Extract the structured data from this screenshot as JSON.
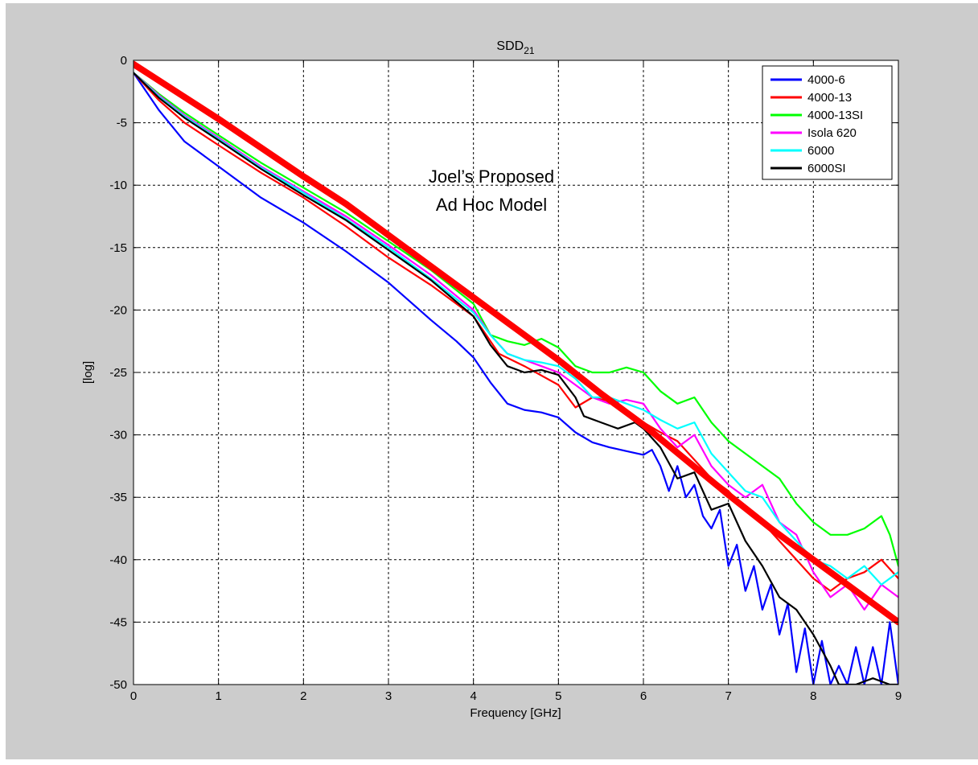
{
  "chart_data": {
    "type": "line",
    "title": {
      "main": "SDD",
      "subscript": "21"
    },
    "xlabel": "Frequency [GHz]",
    "ylabel": "[log]",
    "xlim": [
      0,
      9
    ],
    "ylim": [
      -50,
      0
    ],
    "xticks": [
      0,
      1,
      2,
      3,
      4,
      5,
      6,
      7,
      8,
      9
    ],
    "yticks": [
      0,
      -5,
      -10,
      -15,
      -20,
      -25,
      -30,
      -35,
      -40,
      -45,
      -50
    ],
    "grid": true,
    "legend_position": "top-right",
    "annotation": [
      "Joel’s Proposed",
      "Ad Hoc Model"
    ],
    "series": [
      {
        "name": "4000-6",
        "color": "#0000ff",
        "x": [
          0,
          0.3,
          0.6,
          1.0,
          1.5,
          2.0,
          2.5,
          3.0,
          3.5,
          3.8,
          4.0,
          4.2,
          4.4,
          4.6,
          4.8,
          5.0,
          5.2,
          5.4,
          5.6,
          5.8,
          6.0,
          6.1,
          6.2,
          6.3,
          6.4,
          6.5,
          6.6,
          6.7,
          6.8,
          6.9,
          7.0,
          7.1,
          7.2,
          7.3,
          7.4,
          7.5,
          7.6,
          7.7,
          7.8,
          7.9,
          8.0,
          8.1,
          8.2,
          8.3,
          8.4,
          8.5,
          8.6,
          8.7,
          8.8,
          8.9,
          9.0
        ],
        "y": [
          -1.0,
          -4.0,
          -6.5,
          -8.5,
          -11.0,
          -13.0,
          -15.3,
          -17.8,
          -20.8,
          -22.5,
          -23.8,
          -25.8,
          -27.5,
          -28.0,
          -28.2,
          -28.6,
          -29.8,
          -30.6,
          -31.0,
          -31.3,
          -31.6,
          -31.2,
          -32.5,
          -34.5,
          -32.5,
          -35.0,
          -34.0,
          -36.5,
          -37.5,
          -36.0,
          -40.5,
          -38.8,
          -42.5,
          -40.5,
          -44.0,
          -42.0,
          -46.0,
          -43.5,
          -49.0,
          -45.5,
          -50.0,
          -46.5,
          -50.0,
          -48.5,
          -50.0,
          -47.0,
          -50.0,
          -47.0,
          -50.0,
          -45.0,
          -50.0
        ]
      },
      {
        "name": "4000-13",
        "color": "#ff0000",
        "x": [
          0,
          0.3,
          0.6,
          1.0,
          1.5,
          2.0,
          2.5,
          3.0,
          3.5,
          4.0,
          4.3,
          4.6,
          5.0,
          5.2,
          5.4,
          5.6,
          5.8,
          6.0,
          6.2,
          6.4,
          6.6,
          6.8,
          7.0,
          7.2,
          7.4,
          7.6,
          7.8,
          8.0,
          8.2,
          8.4,
          8.6,
          8.8,
          9.0
        ],
        "y": [
          -1.0,
          -3.2,
          -5.0,
          -6.8,
          -9.0,
          -11.0,
          -13.3,
          -15.8,
          -18.0,
          -20.5,
          -23.5,
          -24.5,
          -26.0,
          -27.8,
          -27.0,
          -27.3,
          -28.0,
          -29.0,
          -29.8,
          -30.5,
          -32.0,
          -33.5,
          -34.5,
          -36.0,
          -37.0,
          -38.5,
          -40.0,
          -41.5,
          -42.5,
          -41.5,
          -41.0,
          -40.0,
          -41.5
        ]
      },
      {
        "name": "4000-13SI",
        "color": "#00ff00",
        "x": [
          0,
          0.3,
          0.6,
          1.0,
          1.5,
          2.0,
          2.5,
          3.0,
          3.5,
          4.0,
          4.2,
          4.4,
          4.6,
          4.8,
          5.0,
          5.2,
          5.4,
          5.6,
          5.8,
          6.0,
          6.2,
          6.4,
          6.6,
          6.8,
          7.0,
          7.2,
          7.4,
          7.6,
          7.8,
          8.0,
          8.2,
          8.4,
          8.6,
          8.8,
          8.9,
          9.0
        ],
        "y": [
          -1.0,
          -2.7,
          -4.2,
          -6.0,
          -8.2,
          -10.2,
          -12.2,
          -14.5,
          -16.8,
          -19.5,
          -22.0,
          -22.5,
          -22.8,
          -22.3,
          -23.0,
          -24.5,
          -25.0,
          -25.0,
          -24.6,
          -25.0,
          -26.5,
          -27.5,
          -27.0,
          -29.0,
          -30.5,
          -31.5,
          -32.5,
          -33.5,
          -35.5,
          -37.0,
          -38.0,
          -38.0,
          -37.5,
          -36.5,
          -38.0,
          -40.5
        ]
      },
      {
        "name": "Isola 620",
        "color": "#ff00ff",
        "x": [
          0,
          0.3,
          0.6,
          1.0,
          1.5,
          2.0,
          2.5,
          3.0,
          3.5,
          4.0,
          4.2,
          4.4,
          4.6,
          4.8,
          5.0,
          5.2,
          5.4,
          5.6,
          5.8,
          6.0,
          6.2,
          6.4,
          6.6,
          6.8,
          7.0,
          7.2,
          7.4,
          7.6,
          7.8,
          8.0,
          8.2,
          8.4,
          8.6,
          8.8,
          9.0
        ],
        "y": [
          -1.0,
          -2.8,
          -4.4,
          -6.2,
          -8.5,
          -10.5,
          -12.5,
          -14.8,
          -17.2,
          -20.0,
          -22.0,
          -23.5,
          -24.0,
          -24.5,
          -25.0,
          -26.0,
          -27.0,
          -27.5,
          -27.2,
          -27.5,
          -29.5,
          -31.0,
          -30.0,
          -32.5,
          -34.0,
          -35.0,
          -34.0,
          -37.0,
          -38.0,
          -41.0,
          -43.0,
          -42.0,
          -44.0,
          -42.0,
          -43.0
        ]
      },
      {
        "name": "6000",
        "color": "#00ffff",
        "x": [
          0,
          0.3,
          0.6,
          1.0,
          1.5,
          2.0,
          2.5,
          3.0,
          3.5,
          4.0,
          4.2,
          4.4,
          4.6,
          4.8,
          5.0,
          5.2,
          5.4,
          5.6,
          5.8,
          6.0,
          6.2,
          6.4,
          6.6,
          6.8,
          7.0,
          7.2,
          7.4,
          7.6,
          7.8,
          8.0,
          8.2,
          8.4,
          8.6,
          8.8,
          9.0
        ],
        "y": [
          -1.0,
          -2.9,
          -4.5,
          -6.3,
          -8.6,
          -10.6,
          -12.7,
          -15.0,
          -17.5,
          -20.2,
          -22.0,
          -23.5,
          -24.0,
          -24.2,
          -24.5,
          -25.5,
          -27.0,
          -27.0,
          -27.5,
          -28.0,
          -28.8,
          -29.5,
          -29.0,
          -31.5,
          -33.0,
          -34.5,
          -35.0,
          -37.0,
          -38.5,
          -40.0,
          -40.5,
          -41.5,
          -40.5,
          -42.0,
          -41.0
        ]
      },
      {
        "name": "6000SI",
        "color": "#000000",
        "x": [
          0,
          0.3,
          0.6,
          1.0,
          1.5,
          2.0,
          2.5,
          3.0,
          3.5,
          4.0,
          4.2,
          4.4,
          4.6,
          4.8,
          5.0,
          5.2,
          5.3,
          5.5,
          5.7,
          5.9,
          6.0,
          6.2,
          6.4,
          6.6,
          6.8,
          7.0,
          7.2,
          7.4,
          7.6,
          7.8,
          8.0,
          8.2,
          8.3,
          8.5,
          8.7,
          8.9,
          9.0
        ],
        "y": [
          -1.0,
          -3.0,
          -4.6,
          -6.4,
          -8.7,
          -10.8,
          -12.8,
          -15.2,
          -17.6,
          -20.5,
          -22.8,
          -24.5,
          -25.0,
          -24.8,
          -25.2,
          -27.0,
          -28.5,
          -29.0,
          -29.5,
          -29.0,
          -29.5,
          -31.0,
          -33.5,
          -33.0,
          -36.0,
          -35.5,
          -38.5,
          -40.5,
          -43.0,
          -44.0,
          -46.0,
          -48.5,
          -50.0,
          -50.0,
          -49.5,
          -50.0,
          -50.0
        ]
      },
      {
        "name": "",
        "color": "#ff0000",
        "thick": true,
        "x": [
          0,
          0.5,
          1,
          1.5,
          2,
          2.5,
          3,
          3.5,
          4,
          4.5,
          5,
          5.5,
          6,
          6.5,
          7,
          7.5,
          8,
          8.5,
          9
        ],
        "y": [
          -0.3,
          -2.5,
          -4.7,
          -7.0,
          -9.3,
          -11.5,
          -14.0,
          -16.5,
          -19.0,
          -21.5,
          -24.0,
          -26.7,
          -29.2,
          -32.0,
          -34.8,
          -37.5,
          -40.0,
          -42.5,
          -45.0
        ]
      }
    ]
  }
}
